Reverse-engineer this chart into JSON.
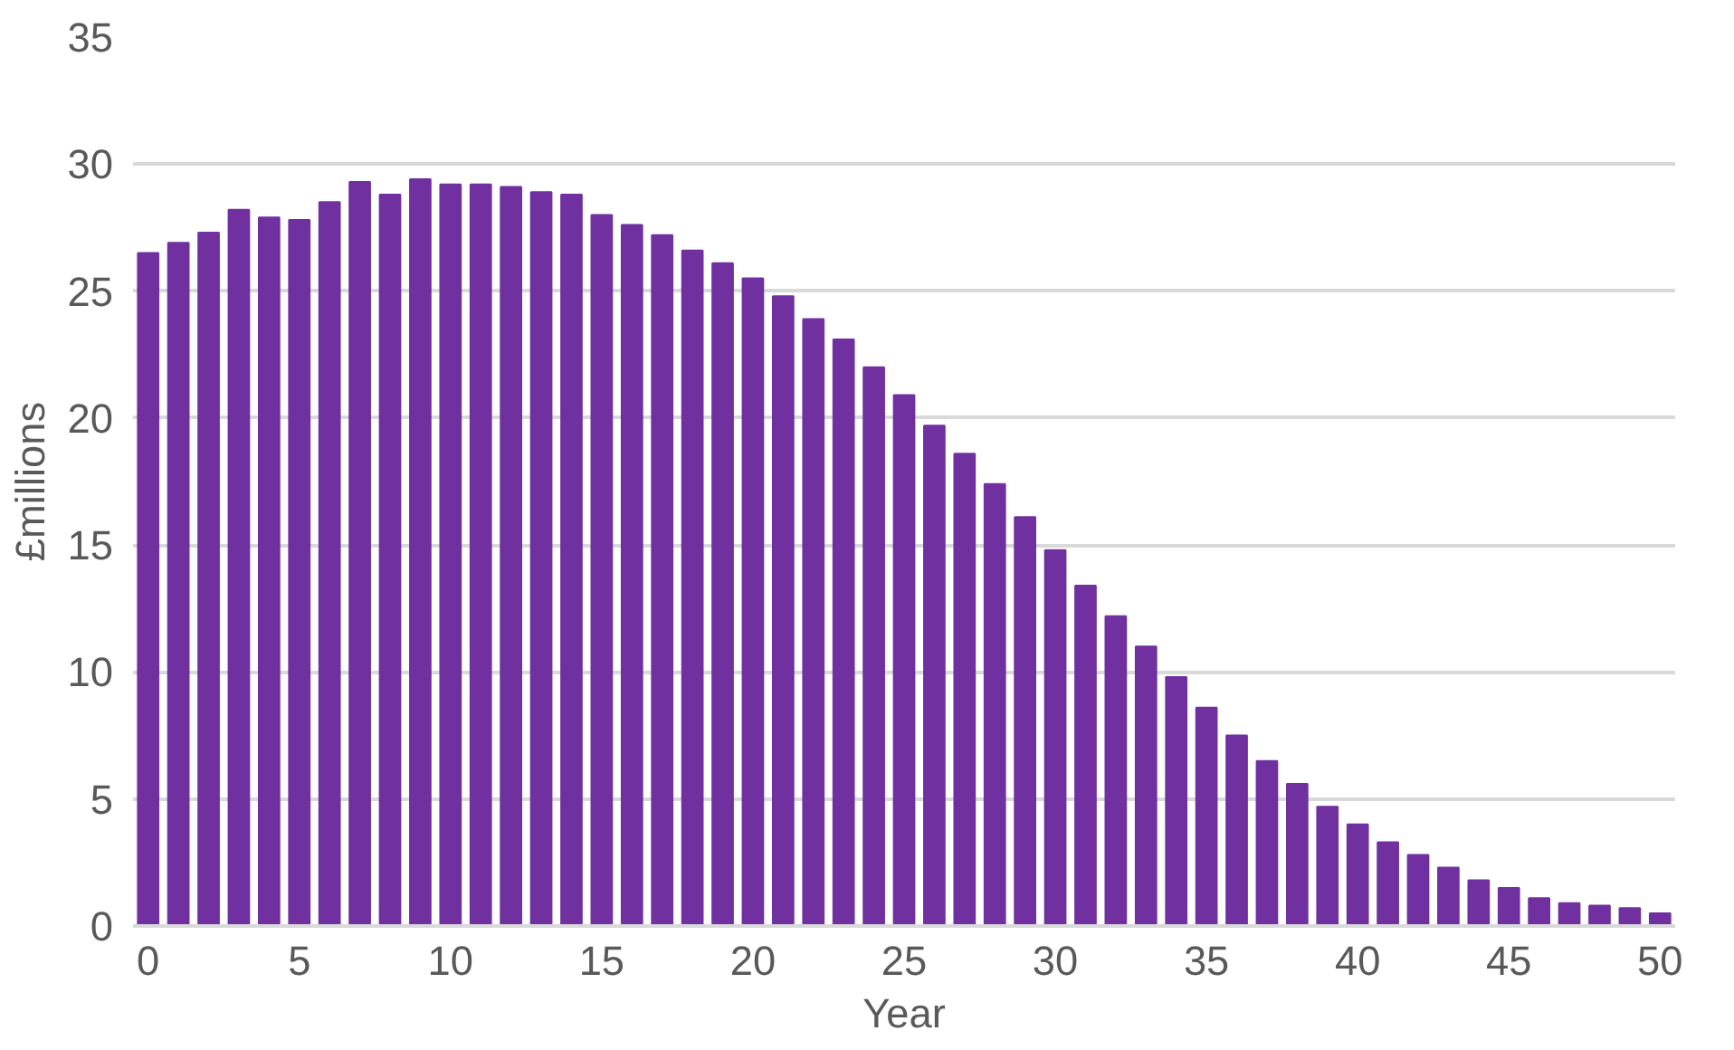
{
  "chart_data": {
    "type": "bar",
    "xlabel": "Year",
    "ylabel": "£millions",
    "color": "#7030a0",
    "x": [
      0,
      1,
      2,
      3,
      4,
      5,
      6,
      7,
      8,
      9,
      10,
      11,
      12,
      13,
      14,
      15,
      16,
      17,
      18,
      19,
      20,
      21,
      22,
      23,
      24,
      25,
      26,
      27,
      28,
      29,
      30,
      31,
      32,
      33,
      34,
      35,
      36,
      37,
      38,
      39,
      40,
      41,
      42,
      43,
      44,
      45,
      46,
      47,
      48,
      49,
      50
    ],
    "values": [
      26.5,
      26.9,
      27.3,
      28.2,
      27.9,
      27.8,
      28.5,
      29.3,
      28.8,
      29.4,
      29.2,
      29.2,
      29.1,
      28.9,
      28.8,
      28.0,
      27.6,
      27.2,
      26.6,
      26.1,
      25.5,
      24.8,
      23.9,
      23.1,
      22.0,
      20.9,
      19.7,
      18.6,
      17.4,
      16.1,
      14.8,
      13.4,
      12.2,
      11.0,
      9.8,
      8.6,
      7.5,
      6.5,
      5.6,
      4.7,
      4.0,
      3.3,
      2.8,
      2.3,
      1.8,
      1.5,
      1.1,
      0.9,
      0.8,
      0.7,
      0.5
    ],
    "xlim": [
      -0.5,
      50.5
    ],
    "xticks": [
      0,
      5,
      10,
      15,
      20,
      25,
      30,
      35,
      40,
      45,
      50
    ],
    "ylim": [
      0,
      35
    ],
    "yticks": [
      0,
      5,
      10,
      15,
      20,
      25,
      30,
      35
    ],
    "grid": "y"
  }
}
